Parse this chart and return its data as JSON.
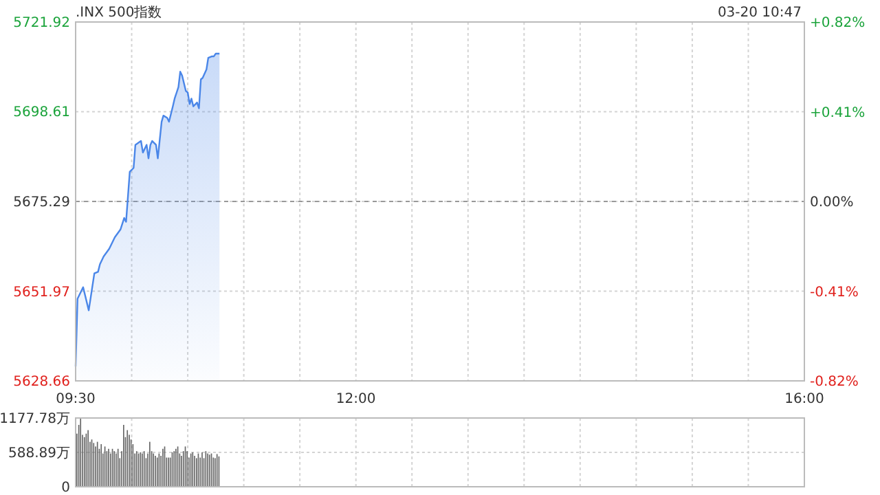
{
  "chart_data": [
    {
      "type": "area",
      "title": ".INX 500指数",
      "annotations": [
        "03-20 10:47"
      ],
      "x": [
        9.5,
        9.517,
        9.567,
        9.617,
        9.667,
        9.7,
        9.717,
        9.75,
        9.8,
        9.85,
        9.9,
        9.933,
        9.95,
        9.983,
        10.017,
        10.033,
        10.083,
        10.1,
        10.133,
        10.15,
        10.167,
        10.183,
        10.217,
        10.233,
        10.267,
        10.283,
        10.317,
        10.333,
        10.367,
        10.383,
        10.417,
        10.433,
        10.45,
        10.483,
        10.5,
        10.517,
        10.533,
        10.55,
        10.583,
        10.6,
        10.617,
        10.633,
        10.667,
        10.683,
        10.717,
        10.733,
        10.75,
        10.783
      ],
      "series": [
        {
          "color": "#4a86e8",
          "values": [
            5632.4,
            5650.0,
            5653.0,
            5647.0,
            5656.6,
            5657.0,
            5659.0,
            5661.0,
            5663.0,
            5666.0,
            5668.0,
            5671.0,
            5670.0,
            5683.0,
            5684.0,
            5690.0,
            5691.0,
            5688.0,
            5690.0,
            5686.5,
            5690.0,
            5691.0,
            5690.0,
            5686.5,
            5696.0,
            5697.6,
            5697.0,
            5696.0,
            5700.0,
            5702.0,
            5705.0,
            5709.0,
            5708.0,
            5704.0,
            5703.6,
            5700.6,
            5702.0,
            5700.0,
            5701.0,
            5699.5,
            5707.0,
            5707.4,
            5709.6,
            5712.6,
            5713.0,
            5713.0,
            5713.7,
            5713.7
          ]
        }
      ],
      "xlim": [
        9.5,
        16
      ],
      "xticks": [
        {
          "value": 9.5,
          "label": "09:30"
        },
        {
          "value": 10,
          "label": null
        },
        {
          "value": 10.5,
          "label": null
        },
        {
          "value": 11,
          "label": null
        },
        {
          "value": 11.5,
          "label": null
        },
        {
          "value": 12,
          "label": "12:00"
        },
        {
          "value": 12.5,
          "label": null
        },
        {
          "value": 13,
          "label": null
        },
        {
          "value": 13.5,
          "label": null
        },
        {
          "value": 14,
          "label": null
        },
        {
          "value": 14.5,
          "label": null
        },
        {
          "value": 15,
          "label": null
        },
        {
          "value": 15.5,
          "label": null
        },
        {
          "value": 16,
          "label": "16:00"
        }
      ],
      "ylim": [
        5628.66,
        5721.92
      ],
      "yticks": [
        5628.66,
        5651.97,
        5675.29,
        5698.61,
        5721.92
      ],
      "y2lim": [
        -0.82,
        0.82
      ],
      "y2ticks": [
        {
          "value": -0.82,
          "label": "-0.82%"
        },
        {
          "value": -0.41,
          "label": "-0.41%"
        },
        {
          "value": 0,
          "label": "0.00%"
        },
        {
          "value": 0.41,
          "label": "+0.41%"
        },
        {
          "value": 0.82,
          "label": "+0.82%"
        }
      ],
      "ref_lines": [
        {
          "axis": "y2",
          "value": 0,
          "color": "#999999",
          "line_style": "dashed"
        }
      ],
      "grid": true
    },
    {
      "type": "bar",
      "tick_labels": "y",
      "color": "#666666",
      "x": [
        9.5,
        9.517,
        9.533,
        9.55,
        9.567,
        9.583,
        9.6,
        9.617,
        9.633,
        9.65,
        9.667,
        9.683,
        9.7,
        9.717,
        9.733,
        9.75,
        9.767,
        9.783,
        9.8,
        9.817,
        9.833,
        9.85,
        9.867,
        9.883,
        9.9,
        9.917,
        9.933,
        9.95,
        9.967,
        9.983,
        10,
        10.017,
        10.033,
        10.05,
        10.067,
        10.083,
        10.1,
        10.117,
        10.133,
        10.15,
        10.167,
        10.183,
        10.2,
        10.217,
        10.233,
        10.25,
        10.267,
        10.283,
        10.3,
        10.317,
        10.333,
        10.35,
        10.367,
        10.383,
        10.4,
        10.417,
        10.433,
        10.45,
        10.467,
        10.483,
        10.5,
        10.517,
        10.533,
        10.55,
        10.567,
        10.583,
        10.6,
        10.617,
        10.633,
        10.65,
        10.667,
        10.683,
        10.7,
        10.717,
        10.733,
        10.75,
        10.767
      ],
      "values": [
        910,
        1060,
        1170,
        890,
        850,
        910,
        970,
        770,
        810,
        750,
        690,
        770,
        650,
        730,
        570,
        690,
        610,
        650,
        570,
        650,
        610,
        570,
        650,
        490,
        610,
        1060,
        850,
        970,
        890,
        810,
        730,
        570,
        610,
        570,
        590,
        570,
        610,
        490,
        570,
        770,
        610,
        570,
        530,
        500,
        570,
        530,
        650,
        690,
        500,
        500,
        500,
        590,
        610,
        650,
        690,
        570,
        530,
        610,
        690,
        610,
        500,
        570,
        590,
        530,
        490,
        570,
        500,
        590,
        490,
        610,
        570,
        550,
        570,
        500,
        490,
        560,
        520
      ],
      "xlim": [
        9.5,
        16
      ],
      "xticks": [
        {
          "value": 9.5,
          "label": null
        },
        {
          "value": 10,
          "label": null
        },
        {
          "value": 10.5,
          "label": null
        },
        {
          "value": 11,
          "label": null
        },
        {
          "value": 11.5,
          "label": null
        },
        {
          "value": 12,
          "label": null
        },
        {
          "value": 12.5,
          "label": null
        },
        {
          "value": 13,
          "label": null
        },
        {
          "value": 13.5,
          "label": null
        },
        {
          "value": 14,
          "label": null
        },
        {
          "value": 14.5,
          "label": null
        },
        {
          "value": 15,
          "label": null
        },
        {
          "value": 15.5,
          "label": null
        },
        {
          "value": 16,
          "label": null
        }
      ],
      "ylim": [
        0,
        1177.78
      ],
      "yticks": [
        0,
        {
          "value": 588.89,
          "label": "588.89万"
        },
        {
          "value": 1177.78,
          "label": "1177.78万"
        }
      ],
      "grid": true
    }
  ]
}
